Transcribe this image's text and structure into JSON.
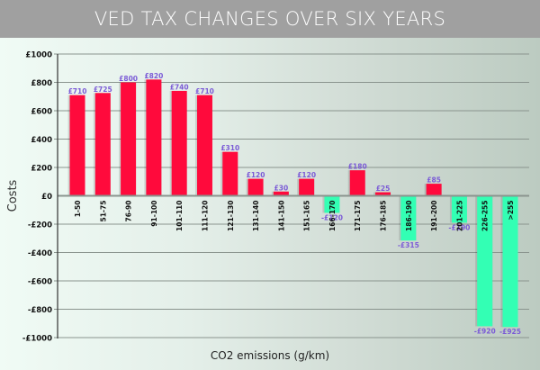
{
  "chart_data": {
    "type": "bar",
    "title": "VED TAX CHANGES OVER SIX YEARS",
    "xlabel": "CO2 emissions (g/km)",
    "ylabel": "Costs",
    "ylim": [
      -1000,
      1000
    ],
    "yticks": [
      1000,
      800,
      600,
      400,
      200,
      0,
      -200,
      -400,
      -600,
      -800,
      -1000
    ],
    "ytick_labels": [
      "£1000",
      "£800",
      "£600",
      "£400",
      "£200",
      "£0",
      "-£200",
      "-£400",
      "-£600",
      "-£800",
      "-£1000"
    ],
    "grid": true,
    "categories": [
      "1-50",
      "51-75",
      "76-90",
      "91-100",
      "101-110",
      "111-120",
      "121-130",
      "131-140",
      "141-150",
      "151-165",
      "166-170",
      "171-175",
      "176-185",
      "186-190",
      "191-200",
      "201-225",
      "226-255",
      ">255"
    ],
    "values": [
      710,
      725,
      800,
      820,
      740,
      710,
      310,
      120,
      30,
      120,
      -120,
      180,
      25,
      -315,
      85,
      -190,
      -920,
      -925
    ],
    "data_labels": [
      "£710",
      "£725",
      "£800",
      "£820",
      "£740",
      "£710",
      "£310",
      "£120",
      "£30",
      "£120",
      "-£120",
      "£180",
      "£25",
      "-£315",
      "£85",
      "-£190",
      "-£920",
      "-£925"
    ],
    "colors": {
      "positive": "#ff0a3c",
      "negative": "#33ffb4",
      "label": "#7b5bd6",
      "grid": "#8a948e",
      "axis": "#333333"
    }
  }
}
